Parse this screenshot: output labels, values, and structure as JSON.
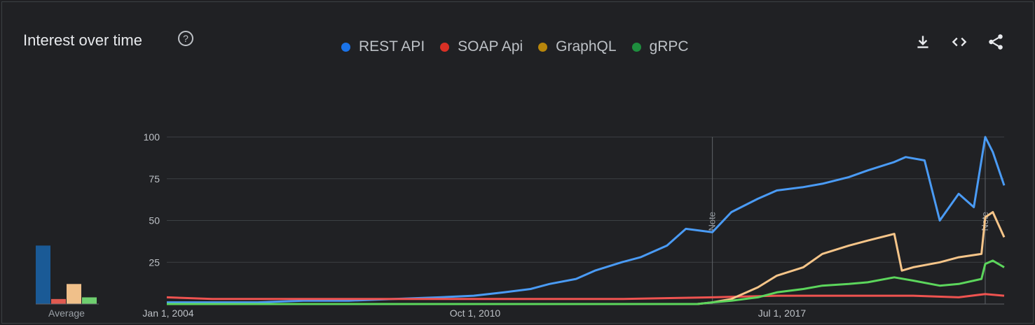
{
  "header": {
    "title": "Interest over time",
    "help_icon": "help-circle-icon",
    "actions": [
      "download-icon",
      "embed-code-icon",
      "share-icon"
    ]
  },
  "legend": [
    {
      "name": "REST API",
      "color": "#1a73e8"
    },
    {
      "name": "SOAP Api",
      "color": "#d93025"
    },
    {
      "name": "GraphQL",
      "color": "#b8860b"
    },
    {
      "name": "gRPC",
      "color": "#1e8e3e"
    }
  ],
  "average": {
    "label": "Average",
    "values": [
      35,
      3,
      12,
      4
    ],
    "colors": [
      "#1a5a96",
      "#e05a50",
      "#f0c08a",
      "#6fcf6f"
    ]
  },
  "notes": [
    "Note",
    "Note"
  ],
  "chart_data": {
    "type": "line",
    "ylim": [
      0,
      100
    ],
    "yticks": [
      25,
      50,
      75,
      100
    ],
    "xticks": [
      "Jan 1, 2004",
      "Oct 1, 2010",
      "Jul 1, 2017"
    ],
    "x_start": "2004-01",
    "x_end": "2022-06",
    "note_dates": [
      "2016-01",
      "2022-01"
    ],
    "series": [
      {
        "name": "REST API",
        "color": "#4a9bf5",
        "x": [
          "2004-01",
          "2005-01",
          "2006-01",
          "2007-01",
          "2008-01",
          "2009-01",
          "2010-01",
          "2010-10",
          "2011-06",
          "2012-01",
          "2012-06",
          "2013-01",
          "2013-06",
          "2014-01",
          "2014-06",
          "2015-01",
          "2015-06",
          "2016-01",
          "2016-06",
          "2017-01",
          "2017-06",
          "2018-01",
          "2018-06",
          "2019-01",
          "2019-06",
          "2020-01",
          "2020-04",
          "2020-09",
          "2021-01",
          "2021-06",
          "2021-10",
          "2022-01",
          "2022-03",
          "2022-06"
        ],
        "values": [
          1,
          1,
          1,
          2,
          2,
          3,
          4,
          5,
          7,
          9,
          12,
          15,
          20,
          25,
          28,
          35,
          45,
          43,
          55,
          63,
          68,
          70,
          72,
          76,
          80,
          85,
          88,
          86,
          50,
          66,
          58,
          100,
          91,
          71
        ]
      },
      {
        "name": "SOAP Api",
        "color": "#ef5350",
        "x": [
          "2004-01",
          "2005-01",
          "2006-01",
          "2008-01",
          "2010-01",
          "2012-01",
          "2014-01",
          "2016-01",
          "2017-06",
          "2019-01",
          "2020-06",
          "2021-06",
          "2022-01",
          "2022-06"
        ],
        "values": [
          4,
          3,
          3,
          3,
          3,
          3,
          3,
          4,
          5,
          5,
          5,
          4,
          6,
          5
        ]
      },
      {
        "name": "GraphQL",
        "color": "#f6c589",
        "x": [
          "2004-01",
          "2015-09",
          "2016-01",
          "2016-06",
          "2017-01",
          "2017-06",
          "2018-01",
          "2018-06",
          "2019-01",
          "2019-06",
          "2020-01",
          "2020-03",
          "2020-06",
          "2021-01",
          "2021-06",
          "2021-12",
          "2022-01",
          "2022-03",
          "2022-06"
        ],
        "values": [
          0,
          0,
          1,
          3,
          10,
          17,
          22,
          30,
          35,
          38,
          42,
          20,
          22,
          25,
          28,
          30,
          52,
          55,
          40
        ]
      },
      {
        "name": "gRPC",
        "color": "#5cd65c",
        "x": [
          "2004-01",
          "2015-09",
          "2016-01",
          "2016-06",
          "2017-01",
          "2017-06",
          "2018-01",
          "2018-06",
          "2019-01",
          "2019-06",
          "2020-01",
          "2020-06",
          "2021-01",
          "2021-06",
          "2021-12",
          "2022-01",
          "2022-03",
          "2022-06"
        ],
        "values": [
          0,
          0,
          1,
          2,
          4,
          7,
          9,
          11,
          12,
          13,
          16,
          14,
          11,
          12,
          15,
          24,
          26,
          22
        ]
      }
    ]
  }
}
